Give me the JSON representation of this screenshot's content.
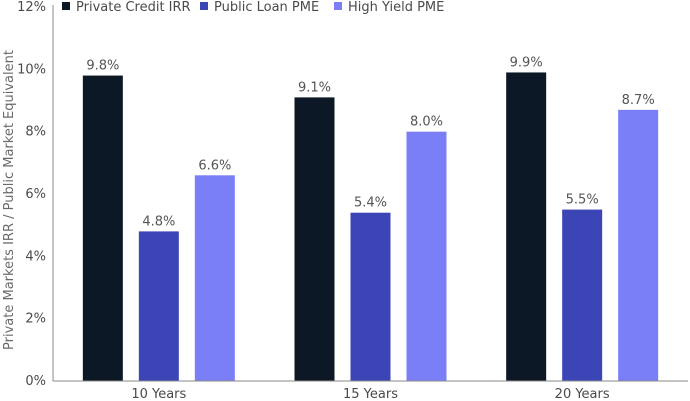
{
  "chart_data": {
    "type": "bar",
    "title": "",
    "xlabel": "",
    "ylabel": "Private Markets IRR / Public Market Equivalent",
    "categories": [
      "10 Years",
      "15 Years",
      "20 Years"
    ],
    "ylim": [
      0,
      12
    ],
    "yticks": [
      "0%",
      "2%",
      "4%",
      "6%",
      "8%",
      "10%",
      "12%"
    ],
    "grid": false,
    "legend_position": "top",
    "series": [
      {
        "name": "Private Credit IRR",
        "color": "#0d1826",
        "values": [
          9.8,
          9.1,
          9.9
        ],
        "labels": [
          "9.8%",
          "9.1%",
          "9.9%"
        ]
      },
      {
        "name": "Public Loan PME",
        "color": "#3c45b5",
        "values": [
          4.8,
          5.4,
          5.5
        ],
        "labels": [
          "4.8%",
          "5.4%",
          "5.5%"
        ]
      },
      {
        "name": "High Yield PME",
        "color": "#7b7ff7",
        "values": [
          6.6,
          8.0,
          8.7
        ],
        "labels": [
          "6.6%",
          "8.0%",
          "8.7%"
        ]
      }
    ]
  }
}
